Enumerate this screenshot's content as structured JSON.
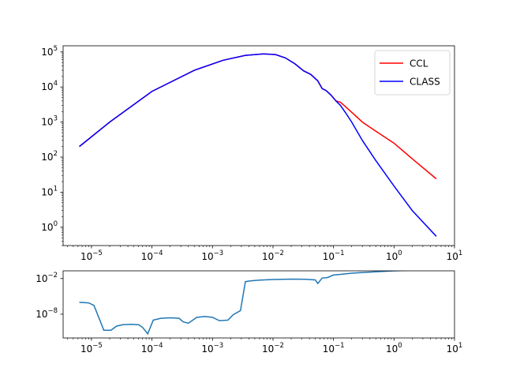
{
  "chart_data": [
    {
      "type": "line",
      "title": "",
      "xlabel": "",
      "ylabel": "",
      "xscale": "log",
      "yscale": "log",
      "xlim": [
        3.4e-06,
        10
      ],
      "ylim": [
        0.3,
        150000
      ],
      "grid": false,
      "legend_position": "top-right",
      "x_ticks": [
        {
          "value": 1e-05,
          "base": "10",
          "exp": "−5"
        },
        {
          "value": 0.0001,
          "base": "10",
          "exp": "−4"
        },
        {
          "value": 0.001,
          "base": "10",
          "exp": "−3"
        },
        {
          "value": 0.01,
          "base": "10",
          "exp": "−2"
        },
        {
          "value": 0.1,
          "base": "10",
          "exp": "−1"
        },
        {
          "value": 1,
          "base": "10",
          "exp": "0"
        },
        {
          "value": 10,
          "base": "10",
          "exp": "1"
        }
      ],
      "y_ticks": [
        {
          "value": 1,
          "base": "10",
          "exp": "0"
        },
        {
          "value": 10,
          "base": "10",
          "exp": "1"
        },
        {
          "value": 100,
          "base": "10",
          "exp": "2"
        },
        {
          "value": 1000,
          "base": "10",
          "exp": "3"
        },
        {
          "value": 10000,
          "base": "10",
          "exp": "4"
        },
        {
          "value": 100000,
          "base": "10",
          "exp": "5"
        }
      ],
      "series": [
        {
          "name": "CCL",
          "color": "#ff0000",
          "x": [
            6.3e-06,
            2e-05,
            0.0001,
            0.0005,
            0.0015,
            0.0035,
            0.007,
            0.011,
            0.016,
            0.023,
            0.032,
            0.042,
            0.055,
            0.065,
            0.075,
            0.09,
            0.11,
            0.13,
            0.16,
            0.2,
            0.3,
            0.5,
            1.0,
            2.0,
            5.0
          ],
          "y": [
            200,
            1000,
            7500,
            30000,
            58000,
            80000,
            88000,
            84000,
            68000,
            46000,
            29000,
            23000,
            15000,
            9000,
            8000,
            6000,
            4000,
            3700,
            2700,
            1900,
            1000,
            550,
            250,
            90,
            24
          ]
        },
        {
          "name": "CLASS",
          "color": "#0000ff",
          "x": [
            6.3e-06,
            2e-05,
            0.0001,
            0.0005,
            0.0015,
            0.0035,
            0.007,
            0.011,
            0.016,
            0.023,
            0.032,
            0.042,
            0.055,
            0.065,
            0.075,
            0.09,
            0.11,
            0.13,
            0.16,
            0.2,
            0.3,
            0.5,
            1.0,
            2.0,
            5.0
          ],
          "y": [
            200,
            1000,
            7500,
            30000,
            58000,
            80000,
            88000,
            84000,
            68000,
            46000,
            29000,
            23000,
            15000,
            9000,
            8000,
            6000,
            4000,
            3000,
            1800,
            1000,
            300,
            80,
            15,
            3,
            0.55
          ]
        }
      ]
    },
    {
      "type": "line",
      "title": "",
      "xlabel": "",
      "ylabel": "",
      "xscale": "log",
      "yscale": "log",
      "xlim": [
        3.4e-06,
        10
      ],
      "ylim": [
        1e-12,
        0.2
      ],
      "grid": false,
      "x_ticks": [
        {
          "value": 1e-05,
          "base": "10",
          "exp": "−5"
        },
        {
          "value": 0.0001,
          "base": "10",
          "exp": "−4"
        },
        {
          "value": 0.001,
          "base": "10",
          "exp": "−3"
        },
        {
          "value": 0.01,
          "base": "10",
          "exp": "−2"
        },
        {
          "value": 0.1,
          "base": "10",
          "exp": "−1"
        },
        {
          "value": 1,
          "base": "10",
          "exp": "0"
        },
        {
          "value": 10,
          "base": "10",
          "exp": "1"
        }
      ],
      "y_ticks": [
        {
          "value": 0.01,
          "base": "10",
          "exp": "−2"
        },
        {
          "value": 1e-08,
          "base": "10",
          "exp": "−8"
        }
      ],
      "series": [
        {
          "color": "#1f77b4",
          "x": [
            6.3e-06,
            9e-06,
            1.1e-05,
            1.6e-05,
            2.1e-05,
            2.6e-05,
            3.3e-05,
            4.5e-05,
            6e-05,
            7e-05,
            8.5e-05,
            0.000105,
            0.00014,
            0.0002,
            0.00028,
            0.00033,
            0.0004,
            0.00055,
            0.00075,
            0.001,
            0.0013,
            0.0018,
            0.0022,
            0.0029,
            0.0035,
            0.0042,
            0.006,
            0.01,
            0.02,
            0.035,
            0.05,
            0.055,
            0.065,
            0.08,
            0.1,
            0.13,
            0.2,
            0.4,
            1.0,
            2.0,
            5.0
          ],
          "y": [
            1e-06,
            8e-07,
            3e-07,
            2e-11,
            2e-11,
            1e-10,
            1.7e-10,
            2e-10,
            1.7e-10,
            6e-11,
            5e-12,
            1e-09,
            2e-09,
            2.5e-09,
            2e-09,
            5e-10,
            3e-10,
            3e-09,
            4e-09,
            3e-09,
            8e-10,
            1e-09,
            8e-09,
            4e-08,
            0.003,
            0.004,
            0.0055,
            0.007,
            0.008,
            0.0075,
            0.006,
            0.0015,
            0.012,
            0.015,
            0.04,
            0.05,
            0.08,
            0.12,
            0.2,
            0.25,
            0.3
          ]
        }
      ]
    }
  ]
}
